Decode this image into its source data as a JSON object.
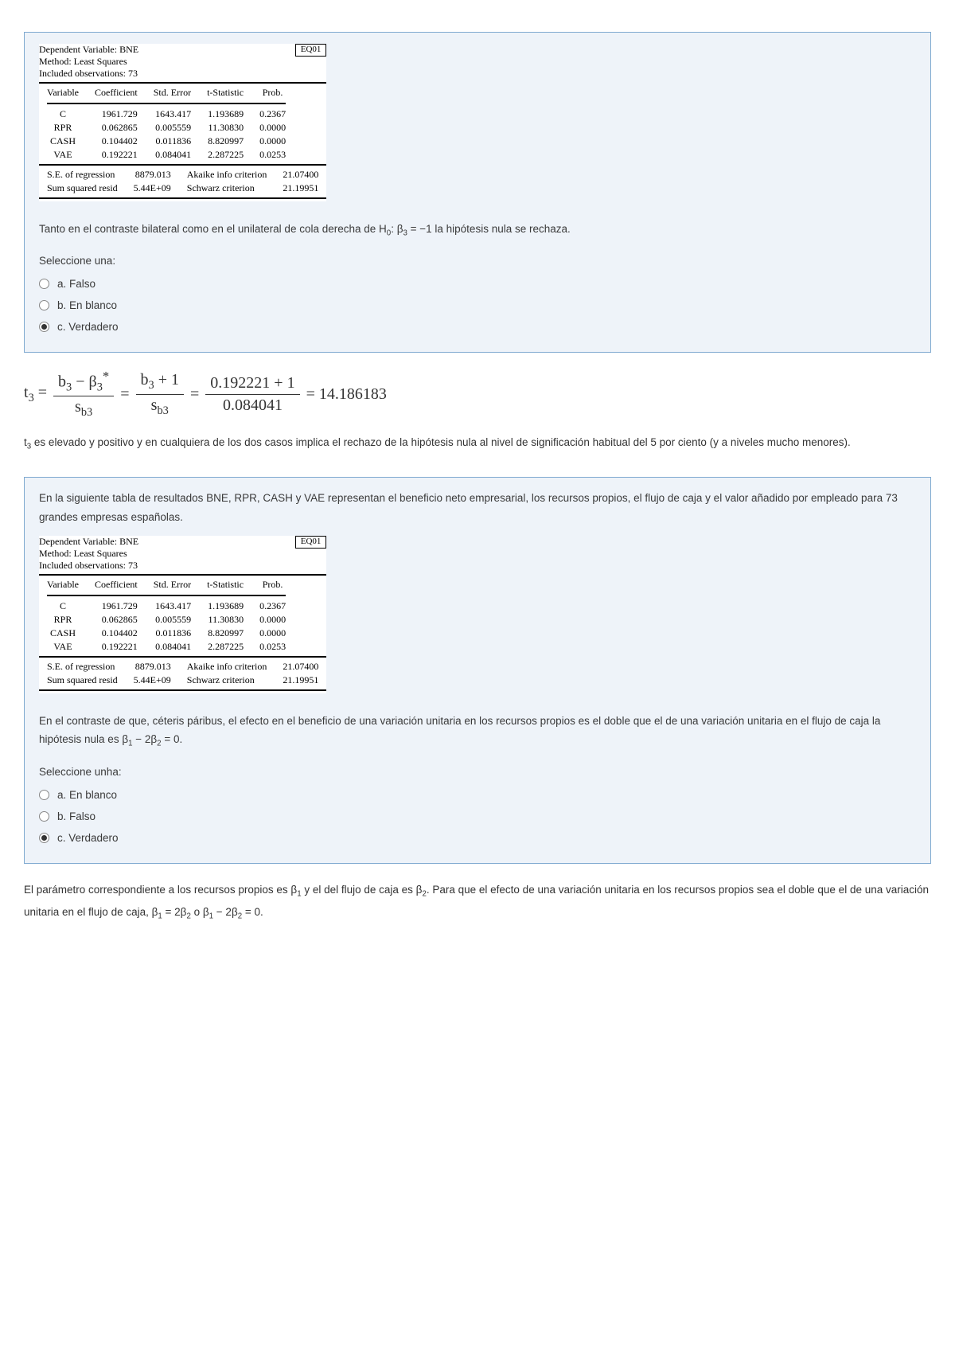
{
  "reg": {
    "eq": "EQ01",
    "meta1": "Dependent Variable: BNE",
    "meta2": "Method: Least Squares",
    "meta3": "Included observations: 73",
    "headers": {
      "v": "Variable",
      "c": "Coefficient",
      "se": "Std. Error",
      "t": "t-Statistic",
      "p": "Prob."
    },
    "rows": [
      {
        "v": "C",
        "c": "1961.729",
        "se": "1643.417",
        "t": "1.193689",
        "p": "0.2367"
      },
      {
        "v": "RPR",
        "c": "0.062865",
        "se": "0.005559",
        "t": "11.30830",
        "p": "0.0000"
      },
      {
        "v": "CASH",
        "c": "0.104402",
        "se": "0.011836",
        "t": "8.820997",
        "p": "0.0000"
      },
      {
        "v": "VAE",
        "c": "0.192221",
        "se": "0.084041",
        "t": "2.287225",
        "p": "0.0253"
      }
    ],
    "foot": {
      "l1a": "S.E. of regression",
      "l1b": "8879.013",
      "l1c": "Akaike info criterion",
      "l1d": "21.07400",
      "l2a": "Sum squared resid",
      "l2b": "5.44E+09",
      "l2c": "Schwarz criterion",
      "l2d": "21.19951"
    }
  },
  "q1": {
    "text_pre": "Tanto en el contraste bilateral como en el unilateral de cola derecha de H",
    "text_sub": "0",
    "text_mid": ": β",
    "text_sub2": "3",
    "text_post": " = −1  la hipótesis nula se rechaza.",
    "select": "Seleccione una:",
    "opts": [
      {
        "k": "a",
        "label": "a. Falso",
        "checked": false
      },
      {
        "k": "b",
        "label": "b. En blanco",
        "checked": false
      },
      {
        "k": "c",
        "label": "c. Verdadero",
        "checked": true
      }
    ]
  },
  "formula": {
    "lhs": "t",
    "lhs_sub": "3",
    "eq": " = ",
    "n1_a": "b",
    "n1_as": "3",
    "n1_m": " − β",
    "n1_bs": "3",
    "n1_star": "*",
    "d1": "s",
    "d1s": "b3",
    "n2": "b",
    "n2s": "3",
    "n2r": " + 1",
    "n3": "0.192221 + 1",
    "d3": "0.084041",
    "res": " = 14.186183"
  },
  "expl1_a": "t",
  "expl1_sub": "3",
  "expl1_b": " es elevado y positivo y en cualquiera de los dos casos implica el rechazo de la hipótesis nula al nivel de significación habitual del 5 por ciento (y a niveles mucho menores).",
  "q2": {
    "intro": "En la siguiente tabla de resultados BNE, RPR, CASH y VAE representan el beneficio neto empresarial, los recursos propios, el flujo de caja y el valor añadido por empleado para 73 grandes empresas españolas.",
    "text_a": "En el contraste de que, céteris páribus, el efecto en el beneficio de una variación unitaria en los recursos propios es el doble que el de una variación unitaria en el flujo de caja la hipótesis nula es β",
    "s1": "1",
    "text_b": " − 2β",
    "s2": "2",
    "text_c": " = 0.",
    "select": "Seleccione unha:",
    "opts": [
      {
        "k": "a",
        "label": "a. En blanco",
        "checked": false
      },
      {
        "k": "b",
        "label": "b. Falso",
        "checked": false
      },
      {
        "k": "c",
        "label": "c. Verdadero",
        "checked": true
      }
    ]
  },
  "expl2_a": "El parámetro correspondiente a los recursos propios es β",
  "expl2_s1": "1",
  "expl2_b": " y el del flujo de caja es β",
  "expl2_s2": "2",
  "expl2_c": ". Para que el efecto de una variación unitaria en los recursos propios sea el doble que el de una variación unitaria en el flujo de caja, β",
  "expl2_s3": "1",
  "expl2_d": " = 2β",
  "expl2_s4": "2",
  "expl2_e": " o β",
  "expl2_s5": "1",
  "expl2_f": " − 2β",
  "expl2_s6": "2",
  "expl2_g": " = 0."
}
